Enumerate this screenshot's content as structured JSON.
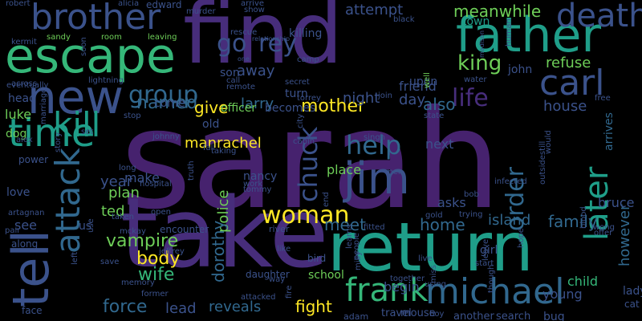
{
  "palette": {
    "purple": "#46226e",
    "violet": "#472d7b",
    "indigo": "#3b528b",
    "slate": "#31688e",
    "teal": "#26828e",
    "cyan": "#1f9e89",
    "green": "#35b779",
    "lime": "#6ece58",
    "yellow": "#dde318",
    "bright": "#fde725"
  },
  "words": [
    "sarah",
    "take",
    "find",
    "return",
    "father",
    "escape",
    "tell",
    "new",
    "brother",
    "carl",
    "time",
    "jim",
    "attack",
    "kill",
    "death",
    "michael",
    "frank",
    "later",
    "back",
    "chuck",
    "woman",
    "go",
    "rey",
    "order",
    "help",
    "life",
    "group",
    "named",
    "king",
    "meanwhile",
    "refuse",
    "give",
    "larry",
    "mother",
    "also",
    "vampire",
    "ted",
    "police",
    "dorothy",
    "body",
    "wife",
    "force",
    "lead",
    "reveals",
    "fight",
    "meet",
    "home",
    "island",
    "family",
    "however",
    "arrives",
    "killed",
    "bruce",
    "next",
    "asks",
    "manrachel",
    "plan",
    "make",
    "year",
    "attempt",
    "day",
    "officer",
    "becomes",
    "away",
    "turn",
    "son",
    "night",
    "friend",
    "upon",
    "john",
    "house",
    "old",
    "come",
    "see",
    "us",
    "begin",
    "young",
    "child",
    "girl",
    "luke",
    "dog",
    "head",
    "love",
    "lady",
    "cat",
    "bug",
    "search",
    "another",
    "travel",
    "mouse",
    "adam",
    "boy",
    "school",
    "bird",
    "daughter",
    "river",
    "encounter",
    "jeffrey",
    "former",
    "memory",
    "face",
    "save",
    "along",
    "pair",
    "artagnan",
    "kermit",
    "robert",
    "alicia",
    "edward",
    "murder",
    "rescue",
    "arrive",
    "show",
    "sandy",
    "room",
    "leaving",
    "eventually",
    "lightning",
    "soon",
    "relationship",
    "killing",
    "one",
    "camp",
    "call",
    "secret",
    "town",
    "black",
    "madison",
    "water",
    "human",
    "across",
    "remote",
    "torrey",
    "join",
    "well",
    "state",
    "free",
    "marriage",
    "alex",
    "stop",
    "set",
    "power",
    "story",
    "long",
    "johnny",
    "fall",
    "taking",
    "cabin",
    "city",
    "singh",
    "men",
    "infected",
    "outsidestill",
    "would",
    "nancy",
    "work",
    "hospital",
    "truth",
    "tommy",
    "open",
    "taken",
    "trying",
    "gold",
    "bob",
    "mckay",
    "wong",
    "offer",
    "blood",
    "live",
    "leave",
    "start",
    "hope",
    "together",
    "using",
    "though",
    "fire",
    "way",
    "like",
    "learns",
    "milly",
    "people",
    "miss",
    "use",
    "left",
    "attacked",
    "end",
    "place",
    "fitted",
    "following",
    "realizes",
    "never",
    "unable",
    "become",
    "car",
    "mouse2"
  ]
}
